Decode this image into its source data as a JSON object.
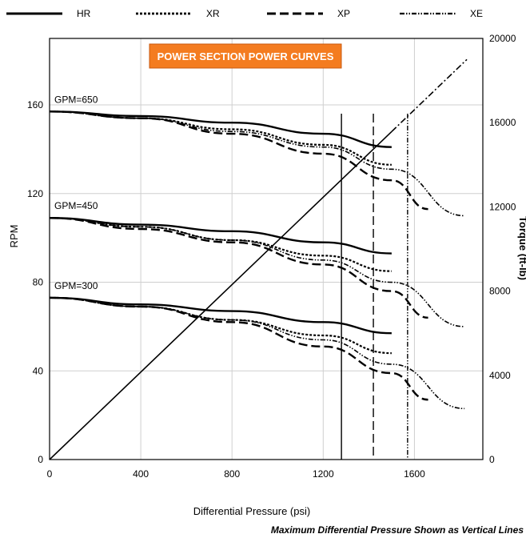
{
  "chart_data": {
    "type": "line",
    "title": "POWER SECTION POWER CURVES",
    "title_bg_color": "#f47c20",
    "xlabel": "Differential Pressure (psi)",
    "ylabel": "RPM",
    "y2label": "Torque (ft-lb)",
    "footnote": "Maximum Differential Pressure Shown as Vertical Lines",
    "xlim": [
      0,
      1900
    ],
    "ylim": [
      0,
      190
    ],
    "y2lim": [
      0,
      20000
    ],
    "x_ticks": [
      0,
      400,
      800,
      1200,
      1600
    ],
    "x_tick_labels": [
      "0",
      "400",
      "800",
      "1200",
      "1600"
    ],
    "y_ticks": [
      0,
      40,
      80,
      120,
      160
    ],
    "y_tick_labels": [
      "0",
      "40",
      "80",
      "120",
      "160"
    ],
    "y2_ticks": [
      0,
      4000,
      8000,
      12000,
      16000,
      20000
    ],
    "y2_tick_labels": [
      "0",
      "4000",
      "8000",
      "12000",
      "16000",
      "20000"
    ],
    "grid": true,
    "legend_position": "top",
    "legend": [
      {
        "name": "HR",
        "style": "solid"
      },
      {
        "name": "XR",
        "style": "dotted"
      },
      {
        "name": "XP",
        "style": "dashed"
      },
      {
        "name": "XE",
        "style": "dashdot"
      }
    ],
    "flow_labels": [
      {
        "text": "GPM=650",
        "rpm": 157
      },
      {
        "text": "GPM=450",
        "rpm": 109
      },
      {
        "text": "GPM=300",
        "rpm": 73
      }
    ],
    "rpm_series": [
      {
        "series": "HR",
        "gpm": 650,
        "x": [
          0,
          400,
          800,
          1200,
          1500
        ],
        "y": [
          157,
          155,
          152,
          147,
          141
        ]
      },
      {
        "series": "XR",
        "gpm": 650,
        "x": [
          0,
          400,
          800,
          1200,
          1500
        ],
        "y": [
          157,
          154,
          149,
          142,
          133
        ]
      },
      {
        "series": "XP",
        "gpm": 650,
        "x": [
          0,
          400,
          800,
          1200,
          1500,
          1660
        ],
        "y": [
          157,
          154,
          147,
          138,
          126,
          113
        ]
      },
      {
        "series": "XE",
        "gpm": 650,
        "x": [
          0,
          400,
          800,
          1200,
          1500,
          1820
        ],
        "y": [
          157,
          154,
          148,
          141,
          131,
          110
        ]
      },
      {
        "series": "HR",
        "gpm": 450,
        "x": [
          0,
          400,
          800,
          1200,
          1500
        ],
        "y": [
          109,
          106,
          103,
          98,
          93
        ]
      },
      {
        "series": "XR",
        "gpm": 450,
        "x": [
          0,
          400,
          800,
          1200,
          1500
        ],
        "y": [
          109,
          105,
          99,
          92,
          85
        ]
      },
      {
        "series": "XP",
        "gpm": 450,
        "x": [
          0,
          400,
          800,
          1200,
          1500,
          1660
        ],
        "y": [
          109,
          104,
          98,
          88,
          76,
          64
        ]
      },
      {
        "series": "XE",
        "gpm": 450,
        "x": [
          0,
          400,
          800,
          1200,
          1500,
          1820
        ],
        "y": [
          109,
          105,
          99,
          90,
          80,
          60
        ]
      },
      {
        "series": "HR",
        "gpm": 300,
        "x": [
          0,
          400,
          800,
          1200,
          1500
        ],
        "y": [
          73,
          70,
          67,
          62,
          57
        ]
      },
      {
        "series": "XR",
        "gpm": 300,
        "x": [
          0,
          400,
          800,
          1200,
          1500
        ],
        "y": [
          73,
          69,
          63,
          56,
          48
        ]
      },
      {
        "series": "XP",
        "gpm": 300,
        "x": [
          0,
          400,
          800,
          1200,
          1500,
          1660
        ],
        "y": [
          73,
          69,
          62,
          51,
          39,
          27
        ]
      },
      {
        "series": "XE",
        "gpm": 300,
        "x": [
          0,
          400,
          800,
          1200,
          1500,
          1820
        ],
        "y": [
          73,
          69,
          63,
          54,
          43,
          23
        ]
      }
    ],
    "torque_line": {
      "x": [
        0,
        1830
      ],
      "y": [
        0,
        19000
      ]
    },
    "max_pressure_lines": [
      {
        "series": "HR",
        "x": 1280
      },
      {
        "series": "XP",
        "x": 1420
      },
      {
        "series": "XE",
        "x": 1570
      }
    ]
  }
}
